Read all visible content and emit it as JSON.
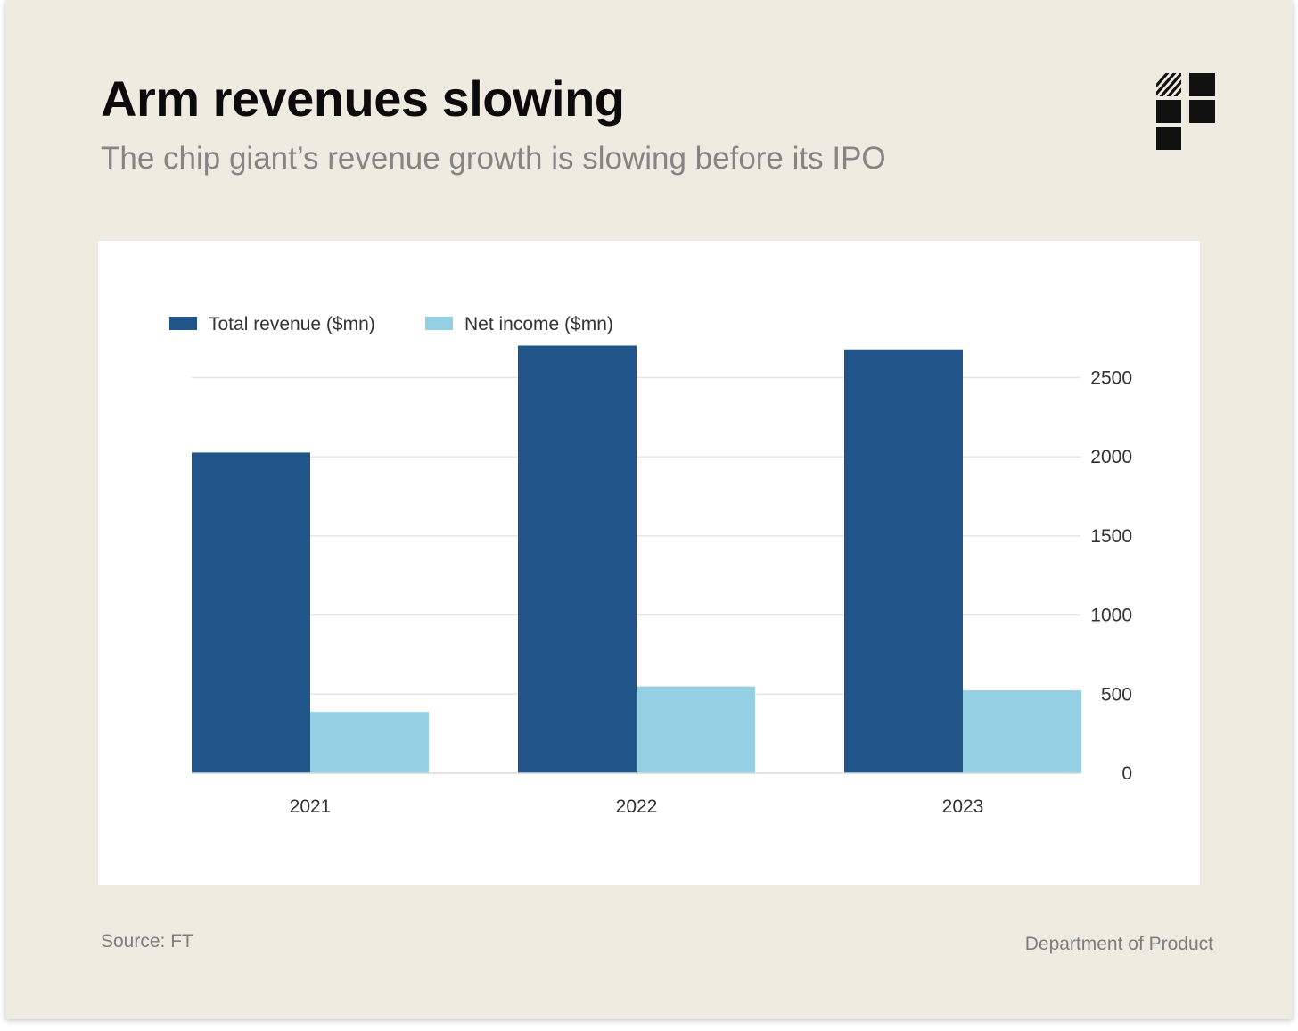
{
  "header": {
    "title": "Arm revenues slowing",
    "subtitle": "The chip giant’s revenue growth is slowing before its IPO"
  },
  "footer": {
    "source": "Source: FT",
    "brand": "Department of Product"
  },
  "chart_data": {
    "type": "bar",
    "categories": [
      "2021",
      "2022",
      "2023"
    ],
    "series": [
      {
        "name": "Total revenue ($mn)",
        "values": [
          2027,
          2703,
          2679
        ],
        "color": "#215589"
      },
      {
        "name": "Net income ($mn)",
        "values": [
          388,
          549,
          524
        ],
        "color": "#95cfe4"
      }
    ],
    "title": "Arm revenues slowing",
    "subtitle": "The chip giant’s revenue growth is slowing before its IPO",
    "xlabel": "",
    "ylabel": "",
    "ylim": [
      0,
      2700
    ],
    "yticks": [
      0,
      500,
      1000,
      1500,
      2000,
      2500
    ],
    "y_axis_side": "right",
    "grid": true,
    "legend": "top-left",
    "gridline_color": "#e6e6e6",
    "tick_label_color": "#333333"
  }
}
